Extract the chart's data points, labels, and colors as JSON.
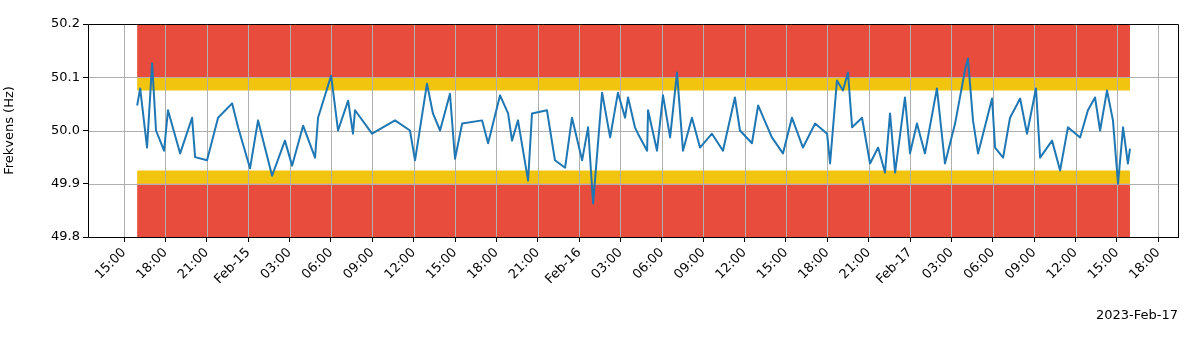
{
  "chart_data": {
    "type": "line",
    "ylabel": "Frekvens (Hz)",
    "annotations": [
      "2023-Feb-17"
    ],
    "xlim": [
      "2023-02-14T12:23",
      "2023-02-17T19:26"
    ],
    "xticks": [
      {
        "value": "2023-02-14T15:00",
        "label": "15:00"
      },
      {
        "value": "2023-02-14T18:00",
        "label": "18:00"
      },
      {
        "value": "2023-02-14T21:00",
        "label": "21:00"
      },
      {
        "value": "2023-02-15T00:00",
        "label": "Feb-15"
      },
      {
        "value": "2023-02-15T03:00",
        "label": "03:00"
      },
      {
        "value": "2023-02-15T06:00",
        "label": "06:00"
      },
      {
        "value": "2023-02-15T09:00",
        "label": "09:00"
      },
      {
        "value": "2023-02-15T12:00",
        "label": "12:00"
      },
      {
        "value": "2023-02-15T15:00",
        "label": "15:00"
      },
      {
        "value": "2023-02-15T18:00",
        "label": "18:00"
      },
      {
        "value": "2023-02-15T21:00",
        "label": "21:00"
      },
      {
        "value": "2023-02-16T00:00",
        "label": "Feb-16"
      },
      {
        "value": "2023-02-16T03:00",
        "label": "03:00"
      },
      {
        "value": "2023-02-16T06:00",
        "label": "06:00"
      },
      {
        "value": "2023-02-16T09:00",
        "label": "09:00"
      },
      {
        "value": "2023-02-16T12:00",
        "label": "12:00"
      },
      {
        "value": "2023-02-16T15:00",
        "label": "15:00"
      },
      {
        "value": "2023-02-16T18:00",
        "label": "18:00"
      },
      {
        "value": "2023-02-16T21:00",
        "label": "21:00"
      },
      {
        "value": "2023-02-17T00:00",
        "label": "Feb-17"
      },
      {
        "value": "2023-02-17T03:00",
        "label": "03:00"
      },
      {
        "value": "2023-02-17T06:00",
        "label": "06:00"
      },
      {
        "value": "2023-02-17T09:00",
        "label": "09:00"
      },
      {
        "value": "2023-02-17T12:00",
        "label": "12:00"
      },
      {
        "value": "2023-02-17T15:00",
        "label": "15:00"
      },
      {
        "value": "2023-02-17T18:00",
        "label": "18:00"
      }
    ],
    "ylim": [
      49.8,
      50.2
    ],
    "yticks": [
      49.8,
      49.9,
      {
        "value": 50,
        "label": "50.0"
      },
      50.1,
      50.2
    ],
    "grid": true,
    "bands": [
      {
        "axis": "y",
        "from": 50.1,
        "to": 50.2,
        "color": "#e74c3c"
      },
      {
        "axis": "y",
        "from": 50.075,
        "to": 50.1,
        "color": "#f1c40f"
      },
      {
        "axis": "y",
        "from": 49.9,
        "to": 49.925,
        "color": "#f1c40f"
      },
      {
        "axis": "y",
        "from": 49.8,
        "to": 49.9,
        "color": "#e74c3c"
      }
    ],
    "series": [
      {
        "color": "#1f77b4",
        "x": [
          "2023-02-14T15:57",
          "2023-02-14T16:10",
          "2023-02-14T16:40",
          "2023-02-14T17:02",
          "2023-02-14T17:19",
          "2023-02-14T17:54",
          "2023-02-14T18:11",
          "2023-02-14T19:04",
          "2023-02-14T19:56",
          "2023-02-14T20:09",
          "2023-02-14T21:01",
          "2023-02-14T21:49",
          "2023-02-14T22:50",
          "2023-02-14T23:16",
          "2023-02-15T00:08",
          "2023-02-15T00:43",
          "2023-02-15T01:44",
          "2023-02-15T02:40",
          "2023-02-15T03:11",
          "2023-02-15T03:59",
          "2023-02-15T04:51",
          "2023-02-15T05:04",
          "2023-02-15T06:01",
          "2023-02-15T06:31",
          "2023-02-15T07:15",
          "2023-02-15T07:36",
          "2023-02-15T07:45",
          "2023-02-15T08:59",
          "2023-02-15T10:39",
          "2023-02-15T11:44",
          "2023-02-15T12:06",
          "2023-02-15T12:58",
          "2023-02-15T13:24",
          "2023-02-15T13:55",
          "2023-02-15T14:38",
          "2023-02-15T15:00",
          "2023-02-15T15:31",
          "2023-02-15T16:58",
          "2023-02-15T17:24",
          "2023-02-15T18:16",
          "2023-02-15T18:51",
          "2023-02-15T19:08",
          "2023-02-15T19:34",
          "2023-02-15T20:18",
          "2023-02-15T20:35",
          "2023-02-15T21:40",
          "2023-02-15T22:15",
          "2023-02-15T22:59",
          "2023-02-15T23:29",
          "2023-02-16T00:13",
          "2023-02-16T00:39",
          "2023-02-16T01:01",
          "2023-02-16T01:40",
          "2023-02-16T02:15",
          "2023-02-16T02:49",
          "2023-02-16T03:20",
          "2023-02-16T03:33",
          "2023-02-16T04:03",
          "2023-02-16T04:16",
          "2023-02-16T04:56",
          "2023-02-16T05:00",
          "2023-02-16T05:39",
          "2023-02-16T06:05",
          "2023-02-16T06:36",
          "2023-02-16T07:06",
          "2023-02-16T07:32",
          "2023-02-16T08:11",
          "2023-02-16T08:46",
          "2023-02-16T09:38",
          "2023-02-16T10:26",
          "2023-02-16T11:18",
          "2023-02-16T11:40",
          "2023-02-16T12:32",
          "2023-02-16T12:59",
          "2023-02-16T13:59",
          "2023-02-16T14:47",
          "2023-02-16T15:26",
          "2023-02-16T16:14",
          "2023-02-16T17:07",
          "2023-02-16T17:59",
          "2023-02-16T18:12",
          "2023-02-16T18:42",
          "2023-02-16T19:08",
          "2023-02-16T19:30",
          "2023-02-16T19:48",
          "2023-02-16T20:31",
          "2023-02-16T21:06",
          "2023-02-16T21:41",
          "2023-02-16T22:11",
          "2023-02-16T22:33",
          "2023-02-16T22:55",
          "2023-02-16T23:38",
          "2023-02-17T00:00",
          "2023-02-17T00:30",
          "2023-02-17T01:05",
          "2023-02-17T01:57",
          "2023-02-17T02:32",
          "2023-02-17T03:16",
          "2023-02-17T03:59",
          "2023-02-17T04:12",
          "2023-02-17T04:34",
          "2023-02-17T04:56",
          "2023-02-17T05:57",
          "2023-02-17T06:10",
          "2023-02-17T06:45",
          "2023-02-17T07:15",
          "2023-02-17T07:59",
          "2023-02-17T08:29",
          "2023-02-17T09:08",
          "2023-02-17T09:26",
          "2023-02-17T10:18",
          "2023-02-17T10:53",
          "2023-02-17T11:27",
          "2023-02-17T12:20",
          "2023-02-17T12:54",
          "2023-02-17T13:25",
          "2023-02-17T13:47",
          "2023-02-17T14:17",
          "2023-02-17T14:43",
          "2023-02-17T15:05",
          "2023-02-17T15:27",
          "2023-02-17T15:48",
          "2023-02-17T15:57"
        ],
        "values": [
          50.047,
          50.079,
          49.968,
          50.126,
          50.0,
          49.962,
          50.038,
          49.957,
          50.024,
          49.95,
          49.944,
          50.024,
          50.051,
          50.006,
          49.929,
          50.019,
          49.915,
          49.981,
          49.934,
          50.009,
          49.949,
          50.024,
          50.103,
          50.0,
          50.056,
          49.994,
          50.038,
          49.994,
          50.019,
          50.0,
          49.944,
          50.088,
          50.032,
          50.0,
          50.069,
          49.947,
          50.013,
          50.019,
          49.976,
          50.066,
          50.032,
          49.981,
          50.019,
          49.906,
          50.032,
          50.038,
          49.944,
          49.93,
          50.024,
          49.944,
          50.006,
          49.863,
          50.071,
          49.987,
          50.071,
          50.024,
          50.062,
          50.006,
          49.994,
          49.962,
          50.038,
          49.962,
          50.066,
          49.987,
          50.109,
          49.962,
          50.024,
          49.968,
          49.994,
          49.962,
          50.062,
          50.0,
          49.976,
          50.047,
          49.987,
          49.957,
          50.024,
          49.968,
          50.013,
          49.994,
          49.938,
          50.094,
          50.075,
          50.109,
          50.006,
          50.024,
          49.938,
          49.968,
          49.921,
          50.032,
          49.921,
          50.062,
          49.957,
          50.013,
          49.957,
          50.079,
          49.938,
          50.013,
          50.113,
          50.135,
          50.019,
          49.957,
          50.06,
          49.968,
          49.949,
          50.024,
          50.06,
          49.994,
          50.079,
          49.949,
          49.981,
          49.925,
          50.006,
          49.987,
          50.038,
          50.062,
          50.0,
          50.075,
          50.019,
          49.9,
          50.006,
          49.938,
          49.966
        ]
      }
    ]
  }
}
